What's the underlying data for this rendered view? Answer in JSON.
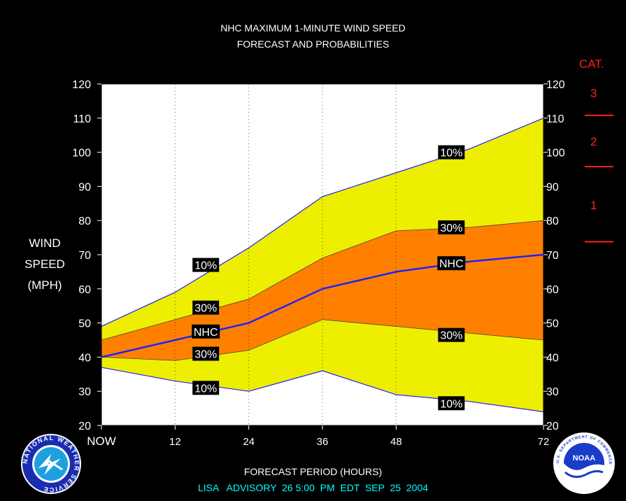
{
  "title_line1": "NHC MAXIMUM 1-MINUTE WIND SPEED",
  "title_line2": "FORECAST AND PROBABILITIES",
  "ylabel_lines": [
    "WIND",
    "SPEED",
    "(MPH)"
  ],
  "xlabel": "FORECAST PERIOD (HOURS)",
  "advisory": {
    "storm": "LISA",
    "label": "ADVISORY",
    "number": "26",
    "time": "5:00  PM  EDT",
    "date": "SEP  25  2004"
  },
  "category": {
    "title": "CAT.",
    "labels": [
      "3",
      "2",
      "1"
    ],
    "thresholds_mph": [
      111,
      96,
      74
    ],
    "color": "#ff2020"
  },
  "colors": {
    "outer_band": "#eeee00",
    "inner_band": "#ff8000",
    "nhc_line": "#2020ff",
    "plot_bg": "#ffffff",
    "axis_text": "#ffffff",
    "footer_text": "#00ffff"
  },
  "logos": {
    "left_text": "NATIONAL WEATHER SERVICE",
    "right_text": "NOAA",
    "right_ring_text": "U.S. DEPARTMENT OF COMMERCE"
  },
  "chart_data": {
    "type": "area",
    "xlim": [
      0,
      72
    ],
    "ylim": [
      20,
      120
    ],
    "x_ticks": [
      0,
      12,
      24,
      36,
      48,
      72
    ],
    "x_tick_labels": [
      "NOW",
      "12",
      "24",
      "36",
      "48",
      "72"
    ],
    "y_ticks": [
      20,
      30,
      40,
      50,
      60,
      70,
      80,
      90,
      100,
      110,
      120
    ],
    "grid": "vertical dotted",
    "x": [
      0,
      12,
      24,
      36,
      48,
      60,
      72
    ],
    "series": [
      {
        "name": "10%",
        "values": [
          49,
          59,
          72,
          87,
          94,
          101,
          110
        ]
      },
      {
        "name": "30%",
        "values": [
          45,
          51,
          57,
          69,
          77,
          78,
          80
        ]
      },
      {
        "name": "NHC",
        "values": [
          40,
          45,
          50,
          60,
          65,
          68,
          70
        ]
      },
      {
        "name": "30%",
        "values": [
          40,
          39,
          42,
          51,
          49,
          47,
          45
        ]
      },
      {
        "name": "10%",
        "values": [
          37,
          33,
          30,
          36,
          29,
          27,
          24
        ]
      }
    ],
    "annotations": [
      {
        "text": "10%",
        "x": 17,
        "y": 67
      },
      {
        "text": "30%",
        "x": 17,
        "y": 54.5
      },
      {
        "text": "NHC",
        "x": 17,
        "y": 47.5
      },
      {
        "text": "30%",
        "x": 17,
        "y": 41
      },
      {
        "text": "10%",
        "x": 17,
        "y": 31
      },
      {
        "text": "10%",
        "x": 57,
        "y": 100
      },
      {
        "text": "30%",
        "x": 57,
        "y": 78
      },
      {
        "text": "NHC",
        "x": 57,
        "y": 67.5
      },
      {
        "text": "30%",
        "x": 57,
        "y": 46.5
      },
      {
        "text": "10%",
        "x": 57,
        "y": 26.5
      }
    ]
  }
}
